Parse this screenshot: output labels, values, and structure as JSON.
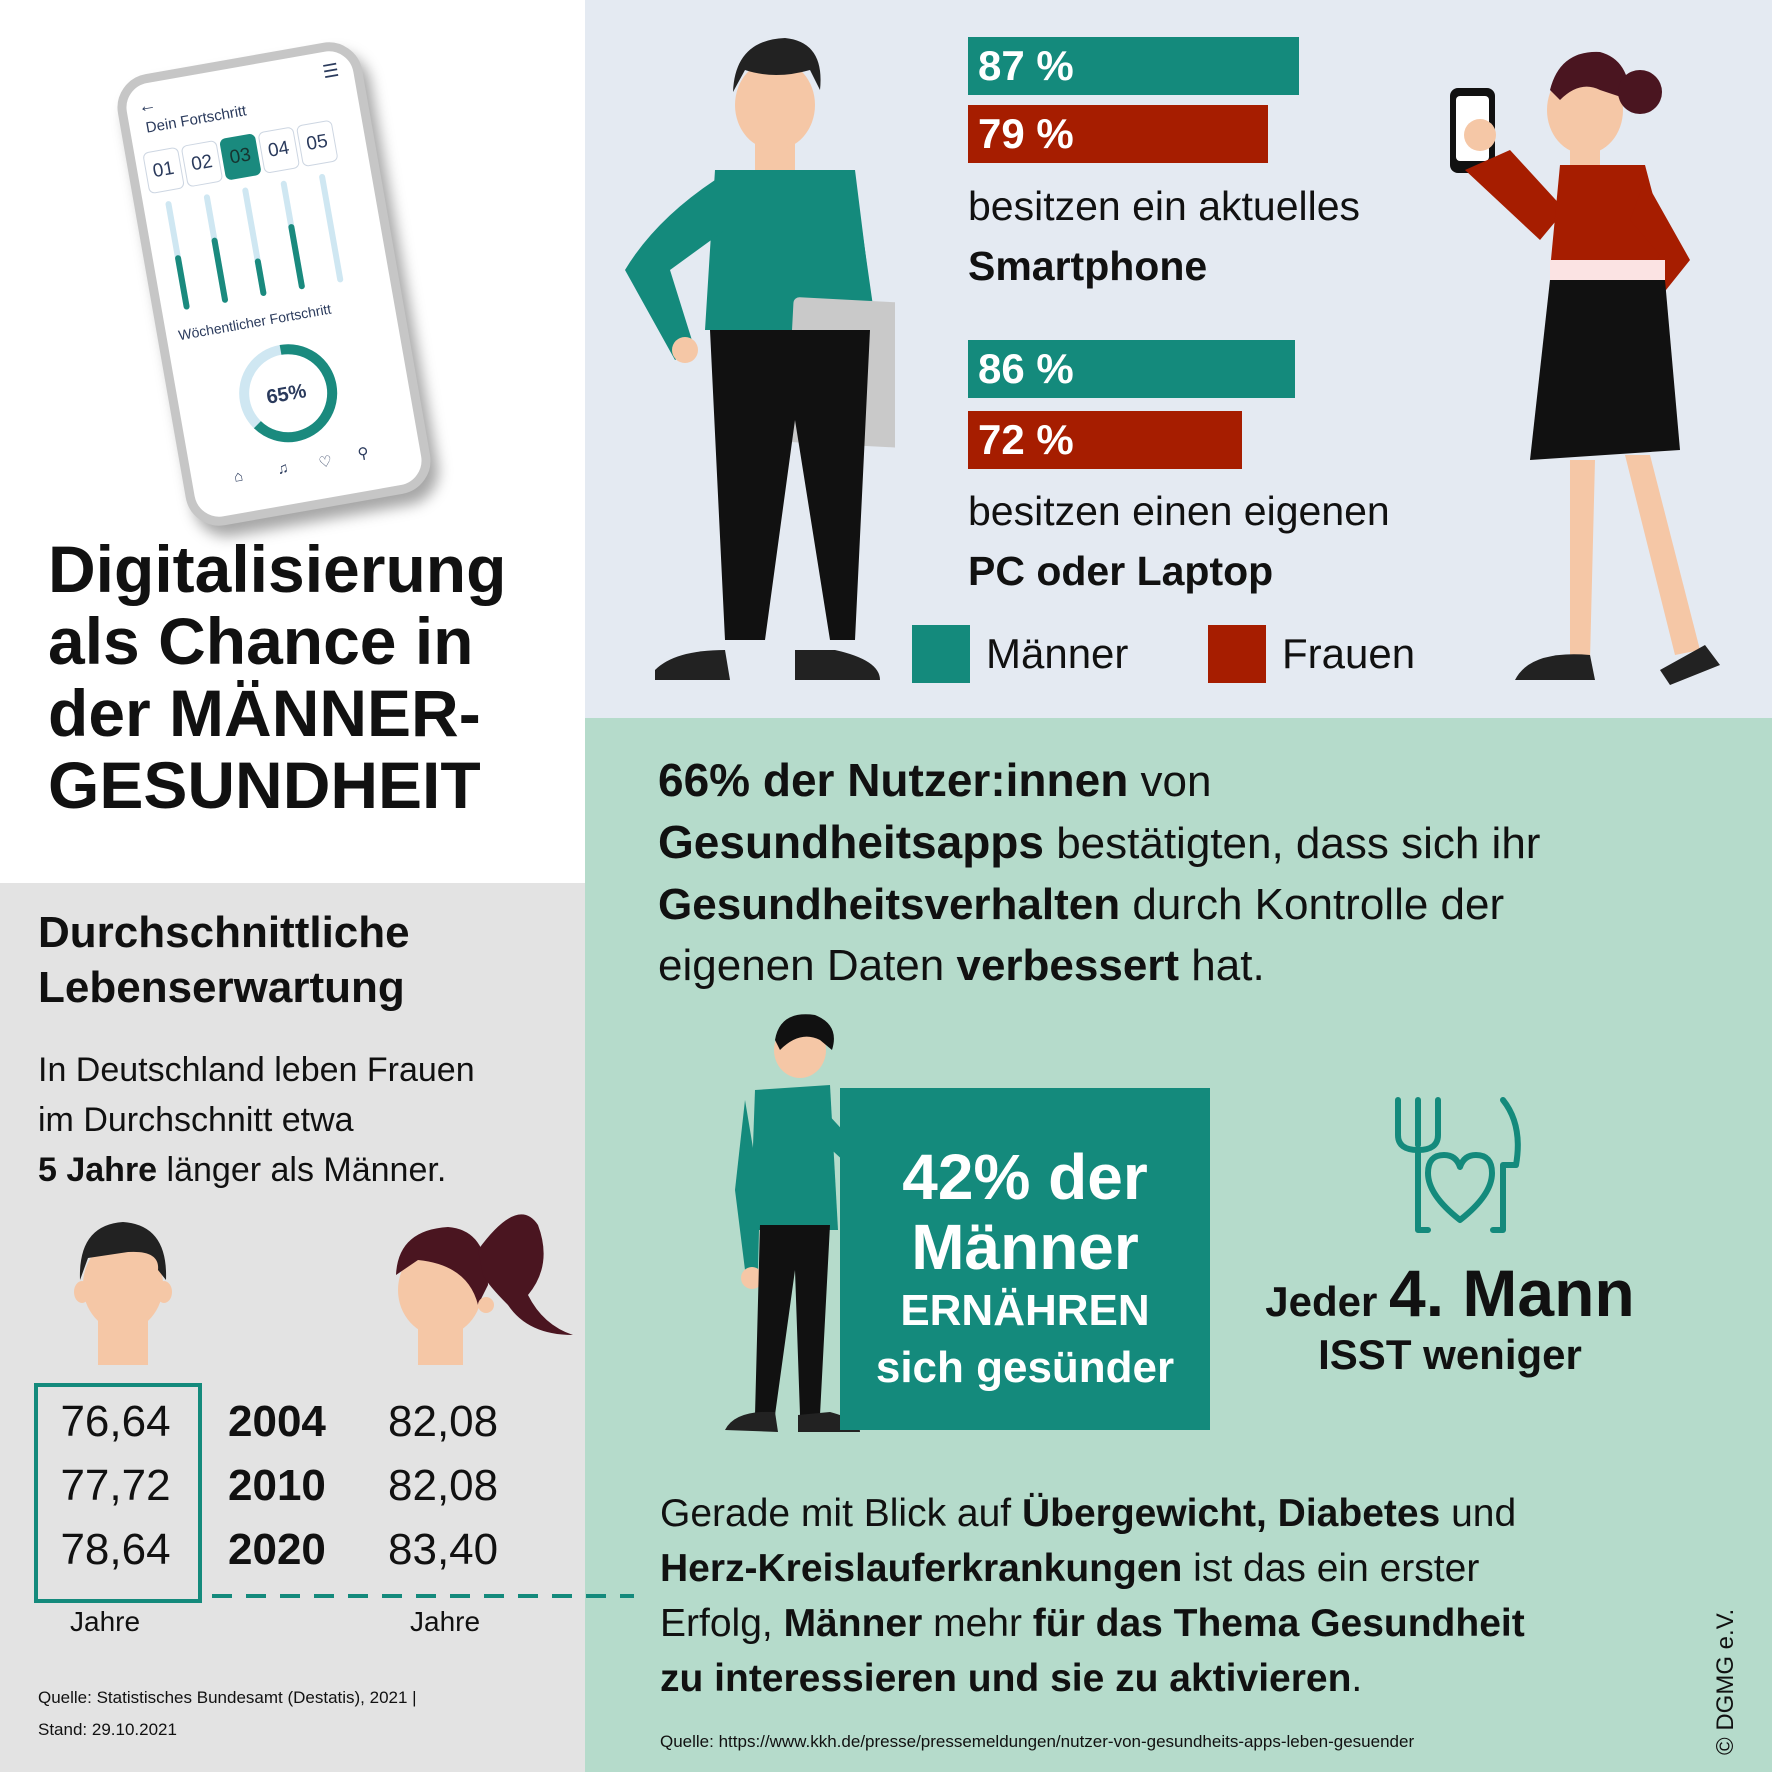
{
  "title": {
    "line1": "Digitalisierung",
    "line2": "als Chance in",
    "line3_a": "der ",
    "line3_b": "MÄNNER-",
    "line4": "GESUNDHEIT"
  },
  "phone": {
    "heading": "Dein Fortschritt",
    "days": [
      "01",
      "02",
      "03",
      "04",
      "05"
    ],
    "day_progress": [
      0.5,
      0.6,
      0.35,
      0.6,
      0
    ],
    "weekly_label": "Wöchentlicher Fortschritt",
    "weekly_percent": "65%",
    "weekly_value": 0.65
  },
  "ownership": {
    "smartphone": {
      "men": "87 %",
      "women": "79 %",
      "men_value": 87,
      "women_value": 79,
      "caption": "besitzen ein aktuelles",
      "caption_bold": "Smartphone"
    },
    "pc": {
      "men": "86 %",
      "women": "72 %",
      "men_value": 86,
      "women_value": 72,
      "caption": "besitzen einen eigenen",
      "caption_bold": "PC oder Laptop"
    },
    "legend": {
      "men": "Männer",
      "women": "Frauen"
    },
    "colors": {
      "men": "#148a7c",
      "women": "#a61d00"
    }
  },
  "stat66": {
    "b1": "66% der Nutzer:innen",
    "t1": " von",
    "b2": "Gesundheitsapps",
    "t2": " bestätigten, dass sich ihr",
    "b3": "Gesundheitsverhalten",
    "t3": " durch Kontrolle der",
    "t4": "eigenen Daten ",
    "b4": "verbessert",
    "t5": " hat."
  },
  "box42": {
    "line1": "42% der",
    "line2": "Männer",
    "line3": "ERNÄHREN",
    "line4": "sich gesünder"
  },
  "jeder": {
    "a": "Jeder ",
    "b": "4. Mann",
    "c": "ISST weniger"
  },
  "gerade": {
    "t1": "Gerade mit Blick auf ",
    "b1": "Übergewicht, Diabetes",
    "t2": " und",
    "b2": "Herz-Kreislauferkrankungen",
    "t3": " ist das ein erster",
    "t4": "Erfolg, ",
    "b3": "Männer",
    "t5": " mehr ",
    "b4": "für das Thema Gesundheit",
    "b5": "zu interessieren und sie zu aktivieren",
    "t6": "."
  },
  "source_right": "Quelle: https://www.kkh.de/presse/pressemeldungen/nutzer-von-gesundheits-apps-leben-gesuender",
  "copyright": "© DGMG e.V.",
  "life": {
    "heading1": "Durchschnittliche",
    "heading2": "Lebenserwartung",
    "p1": "In Deutschland leben Frauen",
    "p2": "im Durchschnitt etwa",
    "p3_bold": "5 Jahre",
    "p3": " länger als Männer.",
    "rows": [
      {
        "men": "76,64",
        "year": "2004",
        "women": "82,08"
      },
      {
        "men": "77,72",
        "year": "2010",
        "women": "82,08"
      },
      {
        "men": "78,64",
        "year": "2020",
        "women": "83,40"
      }
    ],
    "unit_men": "Jahre",
    "unit_women": "Jahre",
    "source1": "Quelle: Statistisches Bundesamt (Destatis), 2021 |",
    "source2": "Stand: 29.10.2021"
  }
}
